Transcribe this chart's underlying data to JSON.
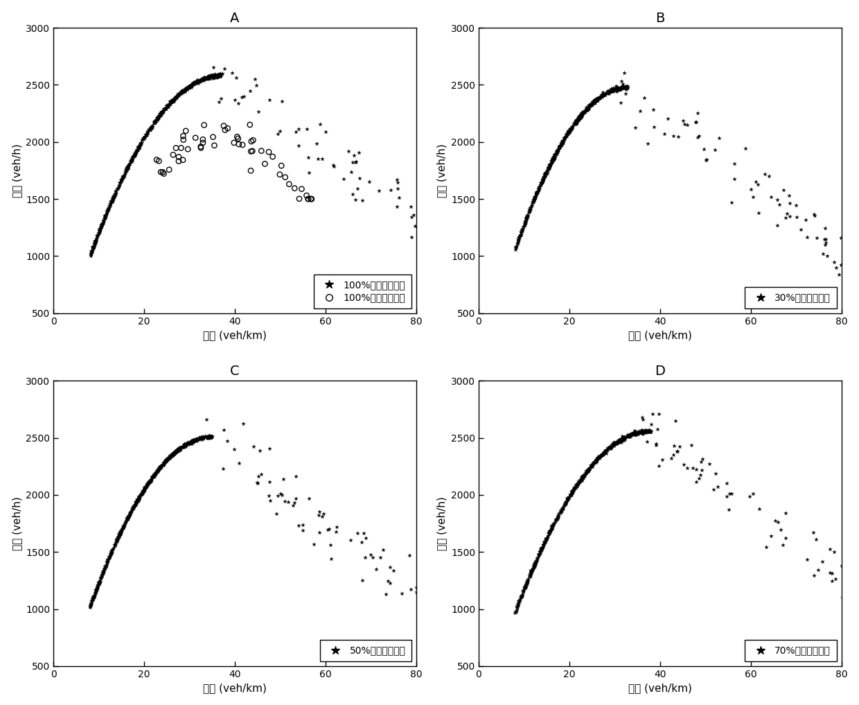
{
  "panels": [
    "A",
    "B",
    "C",
    "D"
  ],
  "xlabel": "密度 (veh/km)",
  "ylabel": "流量 (veh/h)",
  "xlim": [
    0,
    80
  ],
  "ylim": [
    500,
    3000
  ],
  "xticks": [
    0,
    20,
    40,
    60,
    80
  ],
  "yticks": [
    500,
    1000,
    1500,
    2000,
    2500,
    3000
  ],
  "legend_A_star": "100%自动驾驶车辆",
  "legend_A_circle": "100%人工驾驶车辆",
  "legend_B": "30%自动驾驶车辆",
  "legend_C": "50%自动驾驶车辆",
  "legend_D": "70%自动驾驶车辆",
  "marker_color": "#000000",
  "bg_color": "#ffffff",
  "title_fontsize": 14,
  "label_fontsize": 11,
  "legend_fontsize": 10
}
